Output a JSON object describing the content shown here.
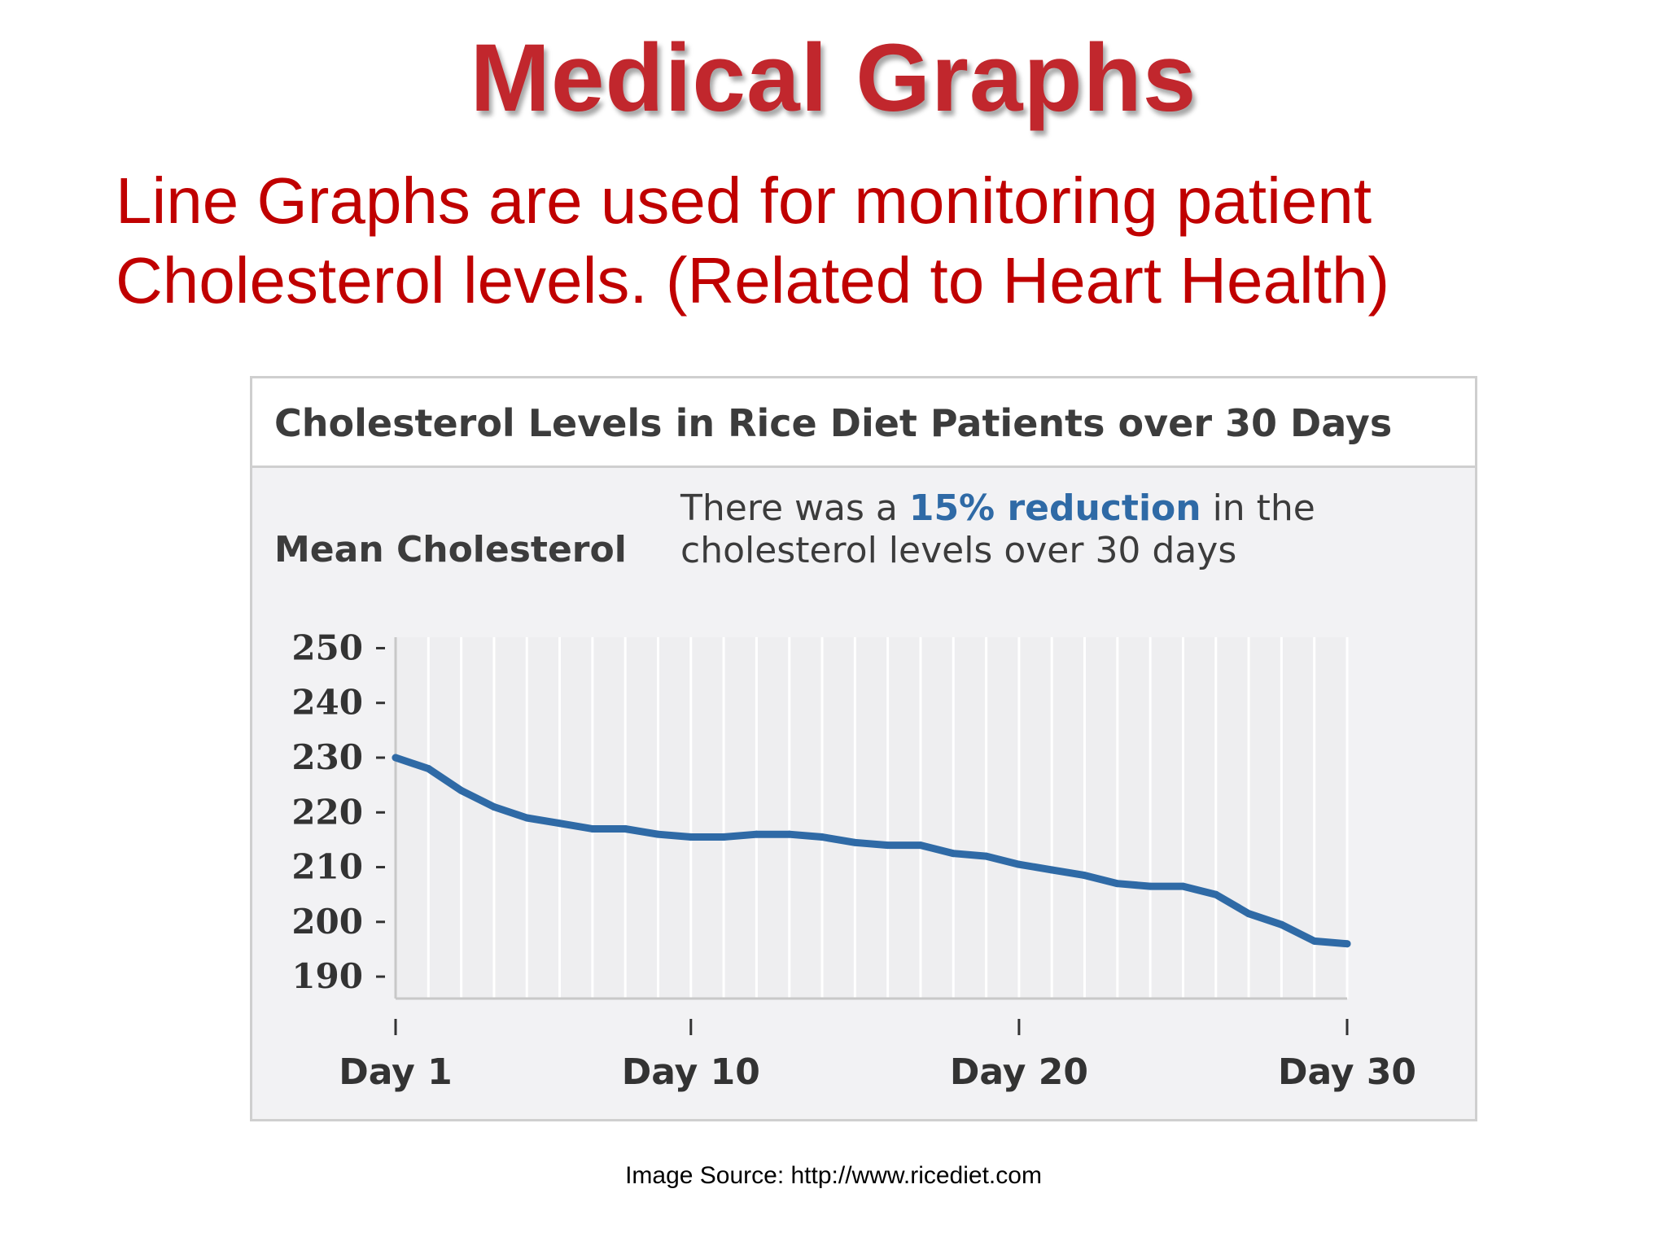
{
  "slide": {
    "title": "Medical Graphs",
    "subtitle": "Line Graphs are used for monitoring patient Cholesterol levels.  (Related to Heart Health)",
    "image_source": "Image Source: http://www.ricediet.com"
  },
  "colors": {
    "title": "#c1272d",
    "subtitle": "#c00000",
    "line": "#2f6aa6",
    "panel_bg": "#f2f2f4"
  },
  "chart_data": {
    "type": "line",
    "title": "Cholesterol Levels in Rice Diet Patients over 30 Days",
    "ylabel": "Mean Cholesterol",
    "annotation": {
      "prefix": "There was a ",
      "highlight": "15% reduction",
      "suffix": " in the cholesterol levels over 30 days"
    },
    "x": [
      1,
      2,
      3,
      4,
      5,
      6,
      7,
      8,
      9,
      10,
      11,
      12,
      13,
      14,
      15,
      16,
      17,
      18,
      19,
      20,
      21,
      22,
      23,
      24,
      25,
      26,
      27,
      28,
      29,
      30
    ],
    "series": [
      {
        "values": [
          230,
          228,
          224,
          221,
          219,
          218,
          217,
          217,
          216,
          215.5,
          215.5,
          216,
          216,
          215.5,
          214.5,
          214,
          214,
          212.5,
          212,
          210.5,
          209.5,
          208.5,
          207,
          206.5,
          206.5,
          205,
          201.5,
          199.5,
          196.5,
          196
        ]
      }
    ],
    "ylim": [
      186,
      252
    ],
    "yticks": [
      250,
      240,
      230,
      220,
      210,
      200,
      190
    ],
    "xticks": [
      {
        "x": 1,
        "label": "Day 1"
      },
      {
        "x": 10,
        "label": "Day 10"
      },
      {
        "x": 20,
        "label": "Day 20"
      },
      {
        "x": 30,
        "label": "Day 30"
      }
    ],
    "grid": "vertical",
    "legend": "none"
  }
}
